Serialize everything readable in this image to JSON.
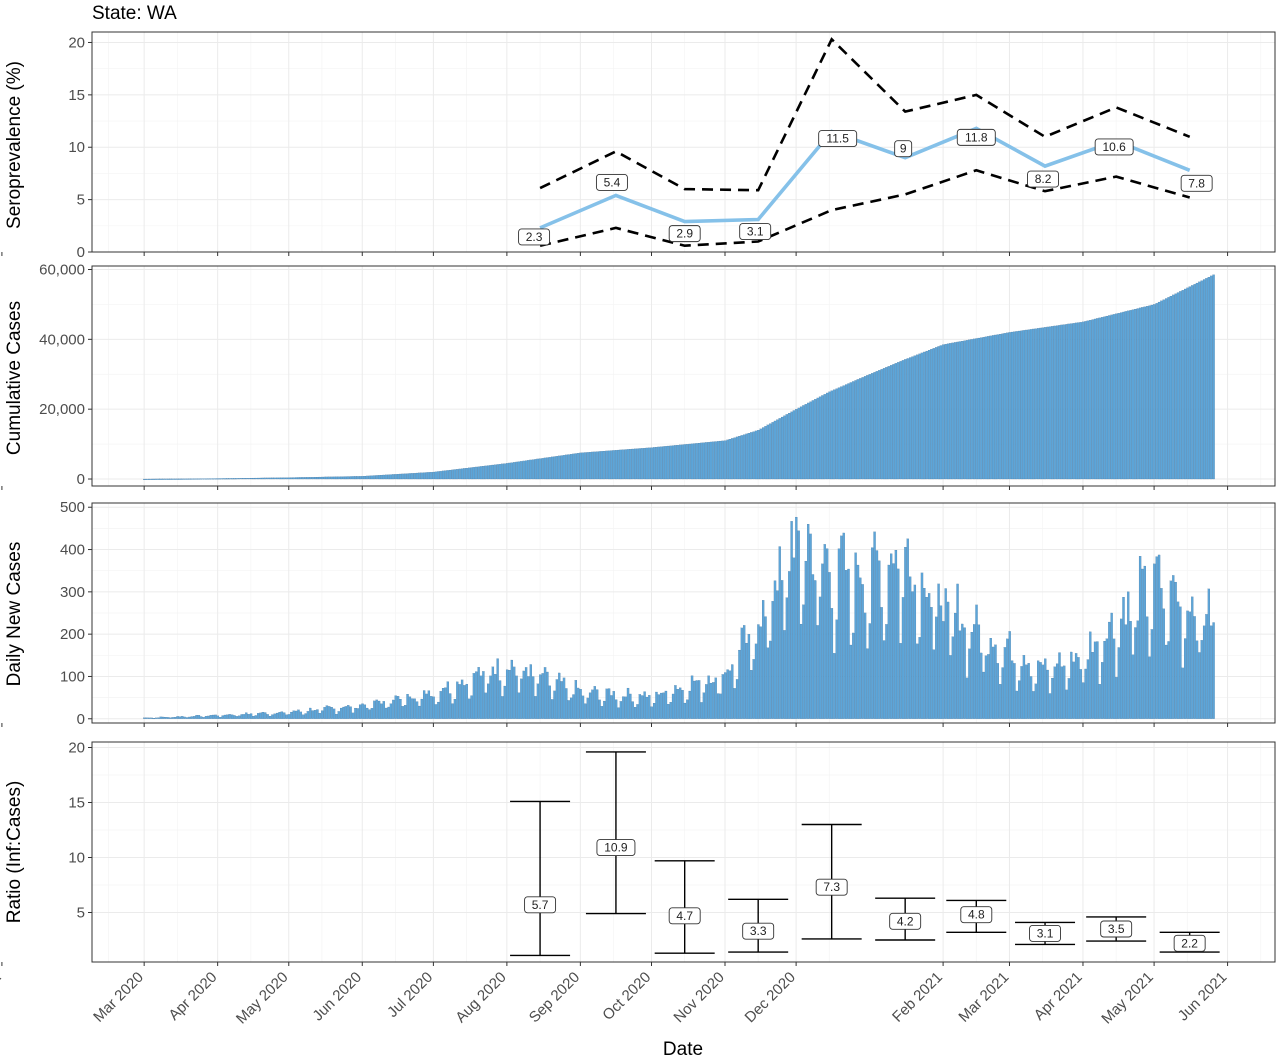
{
  "chart_data": {
    "title": "State: WA",
    "xlabel": "Date",
    "x_ticks": [
      "Mar 2020",
      "Apr 2020",
      "May 2020",
      "Jun 2020",
      "Jul 2020",
      "Aug 2020",
      "Sep 2020",
      "Oct 2020",
      "Nov 2020",
      "Dec 2020",
      "Jan 2021",
      "Feb 2021",
      "Mar 2021",
      "Apr 2021",
      "May 2021",
      "Jun 2021"
    ],
    "x_range": [
      "2020-02-08",
      "2021-06-21"
    ],
    "grid": true,
    "panels": [
      {
        "type": "line",
        "ylabel": "Seroprevalence (%)",
        "ylim": [
          0,
          21
        ],
        "yticks": [
          0,
          5,
          10,
          15,
          20
        ],
        "colors": {
          "estimate": "#85C1E9",
          "bounds": "#000000"
        },
        "x": [
          "2020-08-15",
          "2020-09-16",
          "2020-10-15",
          "2020-11-15",
          "2020-12-16",
          "2021-01-16",
          "2021-02-15",
          "2021-03-16",
          "2021-04-15",
          "2021-05-16"
        ],
        "estimate": [
          2.3,
          5.4,
          2.9,
          3.1,
          11.5,
          9,
          11.8,
          8.2,
          10.6,
          7.8
        ],
        "estimate_labels": [
          "2.3",
          "5.4",
          "2.9",
          "3.1",
          "11.5",
          "9",
          "11.8",
          "8.2",
          "10.6",
          "7.8"
        ],
        "lower": [
          0.6,
          2.3,
          0.6,
          1.0,
          4.0,
          5.5,
          7.8,
          5.8,
          7.2,
          5.2
        ],
        "upper": [
          6.1,
          9.6,
          6.0,
          5.9,
          20.3,
          13.4,
          15.0,
          11.0,
          13.8,
          11.0
        ]
      },
      {
        "type": "bar",
        "ylabel": "Cumulative Cases",
        "ylim": [
          -2000,
          61000
        ],
        "yticks": [
          0,
          20000,
          40000,
          60000
        ],
        "ytick_labels": [
          "0",
          "20,000",
          "40,000",
          "60,000"
        ],
        "color": "#5DA5D8",
        "x_start": "2020-03-01",
        "x_end": "2021-05-26",
        "knots_x": [
          "2020-03-01",
          "2020-04-01",
          "2020-05-01",
          "2020-06-01",
          "2020-07-01",
          "2020-08-01",
          "2020-09-01",
          "2020-10-01",
          "2020-11-01",
          "2020-11-15",
          "2020-12-01",
          "2020-12-15",
          "2021-01-01",
          "2021-01-15",
          "2021-02-01",
          "2021-03-01",
          "2021-04-01",
          "2021-05-01",
          "2021-05-26"
        ],
        "knots_y": [
          0,
          150,
          400,
          800,
          2000,
          4500,
          7500,
          9000,
          11000,
          14000,
          20000,
          25000,
          30000,
          34000,
          38500,
          42000,
          45000,
          50000,
          58500
        ]
      },
      {
        "type": "bar",
        "ylabel": "Daily New Cases",
        "ylim": [
          -10,
          510
        ],
        "yticks": [
          0,
          100,
          200,
          300,
          400,
          500
        ],
        "color": "#5DA5D8",
        "x_start": "2020-03-01",
        "x_end": "2021-05-26",
        "knots_x": [
          "2020-03-01",
          "2020-04-01",
          "2020-05-01",
          "2020-06-01",
          "2020-07-01",
          "2020-08-01",
          "2020-09-01",
          "2020-10-01",
          "2020-11-01",
          "2020-11-15",
          "2020-12-01",
          "2020-12-15",
          "2021-01-01",
          "2021-01-15",
          "2021-02-01",
          "2021-02-20",
          "2021-03-15",
          "2021-04-01",
          "2021-04-15",
          "2021-05-01",
          "2021-05-26"
        ],
        "knots_y": [
          2,
          8,
          15,
          30,
          60,
          120,
          60,
          50,
          100,
          210,
          400,
          330,
          320,
          370,
          250,
          180,
          110,
          140,
          220,
          300,
          220
        ],
        "peaks": [
          482,
          470
        ]
      },
      {
        "type": "errorbar",
        "ylabel": "Ratio (Inf:Cases)",
        "ylim": [
          0.5,
          20.5
        ],
        "yticks": [
          5,
          10,
          15,
          20
        ],
        "x": [
          "2020-08-15",
          "2020-09-16",
          "2020-10-15",
          "2020-11-15",
          "2020-12-16",
          "2021-01-16",
          "2021-02-15",
          "2021-03-16",
          "2021-04-15",
          "2021-05-16"
        ],
        "estimate": [
          5.7,
          10.9,
          4.7,
          3.3,
          7.3,
          4.2,
          4.8,
          3.1,
          3.5,
          2.2
        ],
        "estimate_labels": [
          "5.7",
          "10.9",
          "4.7",
          "3.3",
          "7.3",
          "4.2",
          "4.8",
          "3.1",
          "3.5",
          "2.2"
        ],
        "lower": [
          1.1,
          4.9,
          1.3,
          1.4,
          2.6,
          2.5,
          3.2,
          2.1,
          2.4,
          1.4
        ],
        "upper": [
          15.1,
          19.6,
          9.7,
          6.2,
          13.0,
          6.3,
          6.1,
          4.1,
          4.6,
          3.2
        ]
      }
    ]
  }
}
